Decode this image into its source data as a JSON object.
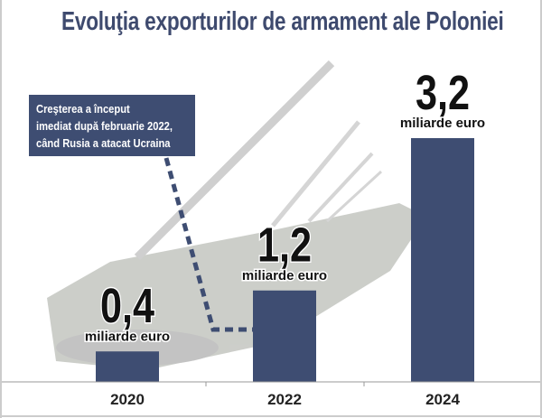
{
  "chart_data": {
    "type": "bar",
    "title": "Evoluţia exporturilor de armament ale Poloniei",
    "categories": [
      "2020",
      "2022",
      "2024"
    ],
    "values": [
      0.4,
      1.2,
      3.2
    ],
    "value_labels": [
      "0,4",
      "1,2",
      "3,2"
    ],
    "unit_label": "miliarde euro",
    "xlabel": "",
    "ylabel": "",
    "ylim": [
      0,
      3.2
    ],
    "grid": false,
    "annotation": [
      "Creşterea a început",
      "imediat după februarie 2022,",
      "când Rusia a atacat Ucraina"
    ],
    "colors": {
      "bar": "#3e4d72",
      "title": "#3e4a6e"
    }
  }
}
